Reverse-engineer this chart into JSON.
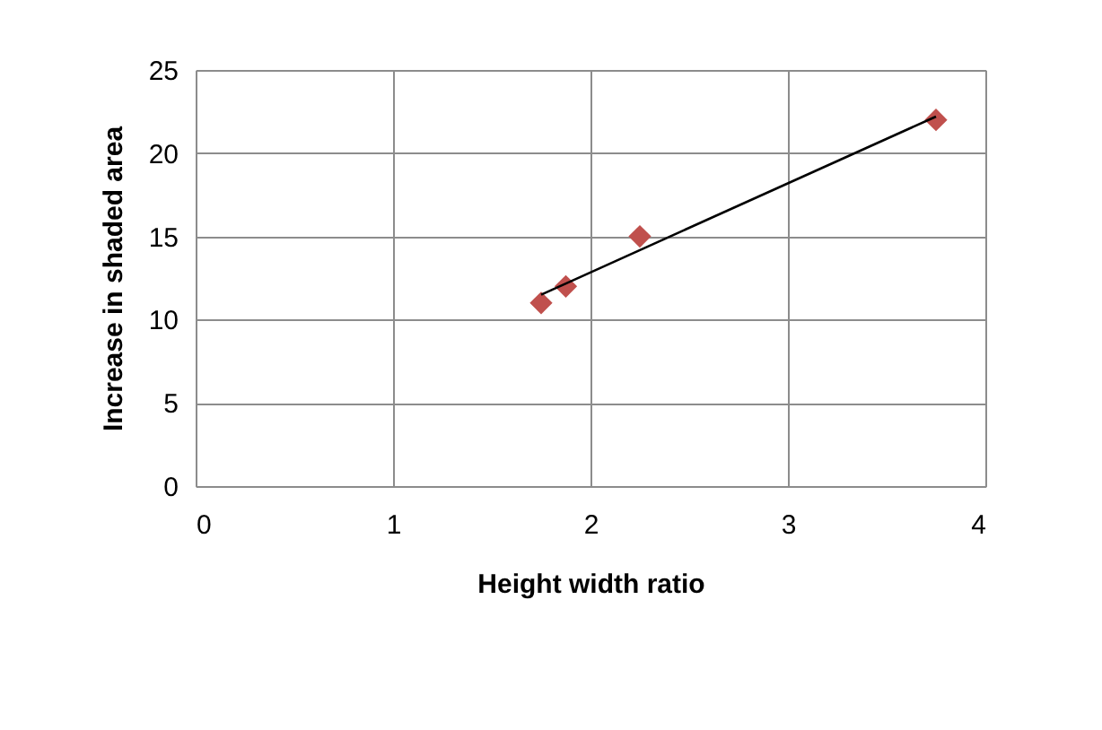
{
  "chart_data": {
    "type": "scatter",
    "xlabel": "Height width ratio",
    "ylabel": "Increase in  shaded area",
    "xlim": [
      0,
      4
    ],
    "xticks": [
      0,
      1,
      2,
      3,
      4
    ],
    "ylim": [
      0,
      25
    ],
    "yticks": [
      0,
      5,
      10,
      15,
      20,
      25
    ],
    "grid": true,
    "marker": "diamond",
    "series": [
      {
        "type": "scatter",
        "color": "#c0504d",
        "x": [
          1.75,
          1.875,
          2.25,
          3.75
        ],
        "values": [
          11,
          12,
          15,
          22
        ]
      },
      {
        "type": "line",
        "marker": "none",
        "color": "#000000",
        "x": [
          1.75,
          3.75
        ],
        "values": [
          11.5,
          22.2
        ]
      }
    ]
  }
}
